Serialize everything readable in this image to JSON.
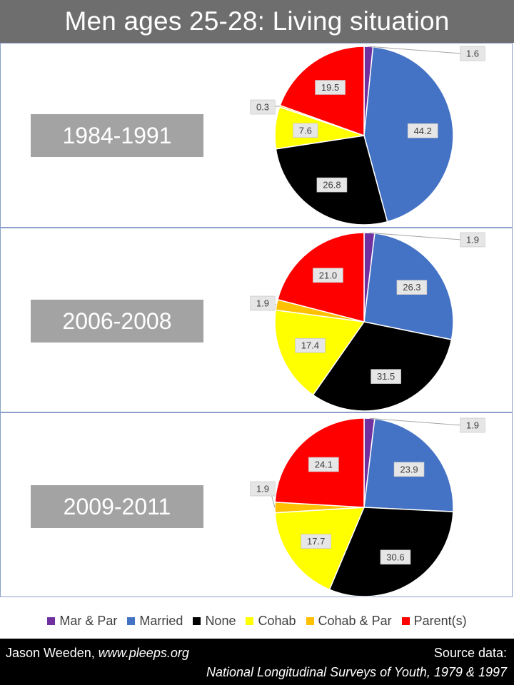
{
  "header": {
    "title": "Men ages 25-28: Living situation"
  },
  "footer": {
    "author": "Jason Weeden,",
    "website": "www.pleeps.org",
    "source_label": "Source data:",
    "source_name": "National Longitudinal Surveys of Youth, 1979 & 1997"
  },
  "legend": {
    "items": [
      {
        "label": "Mar & Par",
        "color": "#7030a0"
      },
      {
        "label": "Married",
        "color": "#4472c4"
      },
      {
        "label": "None",
        "color": "#000000"
      },
      {
        "label": "Cohab",
        "color": "#ffff00"
      },
      {
        "label": "Cohab & Par",
        "color": "#ffc000"
      },
      {
        "label": "Parent(s)",
        "color": "#ff0000"
      }
    ]
  },
  "chart_data": [
    {
      "type": "pie",
      "title": "1984-1991",
      "categories": [
        "Mar & Par",
        "Married",
        "None",
        "Cohab",
        "Cohab & Par",
        "Parent(s)"
      ],
      "values": [
        1.6,
        44.2,
        26.8,
        7.6,
        0.3,
        19.5
      ],
      "labels": [
        "1.6",
        "44.2",
        "26.8",
        "7.6",
        "0.3",
        "19.5"
      ],
      "colors": [
        "#7030a0",
        "#4472c4",
        "#000000",
        "#ffff00",
        "#ffc000",
        "#ff0000"
      ]
    },
    {
      "type": "pie",
      "title": "2006-2008",
      "categories": [
        "Mar & Par",
        "Married",
        "None",
        "Cohab",
        "Cohab & Par",
        "Parent(s)"
      ],
      "values": [
        1.9,
        26.3,
        31.5,
        17.4,
        1.9,
        21.0
      ],
      "labels": [
        "1.9",
        "26.3",
        "31.5",
        "17.4",
        "1.9",
        "21.0"
      ],
      "colors": [
        "#7030a0",
        "#4472c4",
        "#000000",
        "#ffff00",
        "#ffc000",
        "#ff0000"
      ]
    },
    {
      "type": "pie",
      "title": "2009-2011",
      "categories": [
        "Mar & Par",
        "Married",
        "None",
        "Cohab",
        "Cohab & Par",
        "Parent(s)"
      ],
      "values": [
        1.9,
        23.9,
        30.6,
        17.7,
        1.9,
        24.1
      ],
      "labels": [
        "1.9",
        "23.9",
        "30.6",
        "17.7",
        "1.9",
        "24.1"
      ],
      "colors": [
        "#7030a0",
        "#4472c4",
        "#000000",
        "#ffff00",
        "#ffc000",
        "#ff0000"
      ]
    }
  ]
}
